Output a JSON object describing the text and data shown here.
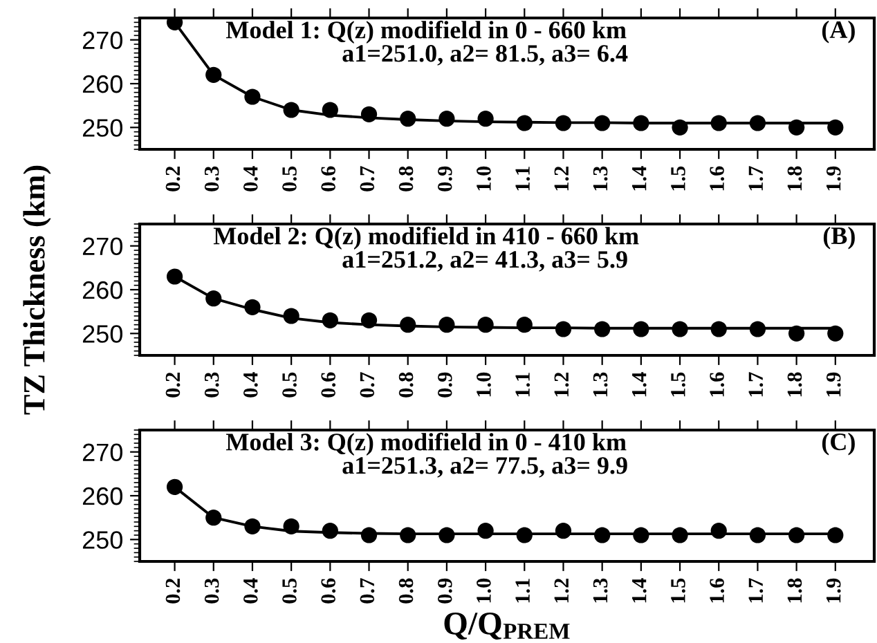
{
  "chart_data": [
    {
      "type": "scatter",
      "title": "Model 1: Q(z) modifield in 0 - 660 km",
      "subtitle": "a1=251.0, a2= 81.5, a3= 6.4",
      "annotations": [
        "(A)"
      ],
      "x": [
        0.2,
        0.3,
        0.4,
        0.5,
        0.6,
        0.7,
        0.8,
        0.9,
        1.0,
        1.1,
        1.2,
        1.3,
        1.4,
        1.5,
        1.6,
        1.7,
        1.8,
        1.9
      ],
      "xlim": [
        0.11,
        2.0
      ],
      "xticks": [
        {
          "value": 0.2,
          "label": "0.2"
        },
        {
          "value": 0.3,
          "label": "0.3"
        },
        {
          "value": 0.4,
          "label": "0.4"
        },
        {
          "value": 0.5,
          "label": "0.5"
        },
        {
          "value": 0.6,
          "label": "0.6"
        },
        {
          "value": 0.7,
          "label": "0.7"
        },
        {
          "value": 0.8,
          "label": "0.8"
        },
        {
          "value": 0.9,
          "label": "0.9"
        },
        {
          "value": 1.0,
          "label": "1.0"
        },
        {
          "value": 1.1,
          "label": "1.1"
        },
        {
          "value": 1.2,
          "label": "1.2"
        },
        {
          "value": 1.3,
          "label": "1.3"
        },
        {
          "value": 1.4,
          "label": "1.4"
        },
        {
          "value": 1.5,
          "label": "1.5"
        },
        {
          "value": 1.6,
          "label": "1.6"
        },
        {
          "value": 1.7,
          "label": "1.7"
        },
        {
          "value": 1.8,
          "label": "1.8"
        },
        {
          "value": 1.9,
          "label": "1.9"
        }
      ],
      "ylim": [
        245,
        275
      ],
      "yticks": [
        250,
        260,
        270
      ],
      "grid": false,
      "legend": false,
      "series": [
        {
          "type": "line",
          "color": "#000000",
          "marker": "none",
          "line_style": "solid",
          "values": [
            274,
            262,
            257,
            254,
            252.8,
            252.2,
            251.8,
            251.5,
            251.3,
            251.2,
            251.1,
            251.1,
            251.0,
            251.0,
            251.0,
            251.0,
            251.0,
            251.0
          ]
        },
        {
          "color": "#000000",
          "marker": "circle",
          "values": [
            274,
            262,
            257,
            254,
            254,
            253,
            252,
            252,
            252,
            251,
            251,
            251,
            251,
            250,
            251,
            251,
            250,
            250
          ]
        }
      ]
    },
    {
      "type": "scatter",
      "title": "Model 2: Q(z) modifield in 410 - 660 km",
      "subtitle": "a1=251.2, a2= 41.3, a3= 5.9",
      "ylabel": "TZ Thickness (km)",
      "annotations": [
        "(B)"
      ],
      "x": [
        0.2,
        0.3,
        0.4,
        0.5,
        0.6,
        0.7,
        0.8,
        0.9,
        1.0,
        1.1,
        1.2,
        1.3,
        1.4,
        1.5,
        1.6,
        1.7,
        1.8,
        1.9
      ],
      "xlim": [
        0.11,
        2.0
      ],
      "xticks": [
        {
          "value": 0.2,
          "label": "0.2"
        },
        {
          "value": 0.3,
          "label": "0.3"
        },
        {
          "value": 0.4,
          "label": "0.4"
        },
        {
          "value": 0.5,
          "label": "0.5"
        },
        {
          "value": 0.6,
          "label": "0.6"
        },
        {
          "value": 0.7,
          "label": "0.7"
        },
        {
          "value": 0.8,
          "label": "0.8"
        },
        {
          "value": 0.9,
          "label": "0.9"
        },
        {
          "value": 1.0,
          "label": "1.0"
        },
        {
          "value": 1.1,
          "label": "1.1"
        },
        {
          "value": 1.2,
          "label": "1.2"
        },
        {
          "value": 1.3,
          "label": "1.3"
        },
        {
          "value": 1.4,
          "label": "1.4"
        },
        {
          "value": 1.5,
          "label": "1.5"
        },
        {
          "value": 1.6,
          "label": "1.6"
        },
        {
          "value": 1.7,
          "label": "1.7"
        },
        {
          "value": 1.8,
          "label": "1.8"
        },
        {
          "value": 1.9,
          "label": "1.9"
        }
      ],
      "ylim": [
        245,
        275
      ],
      "yticks": [
        250,
        260,
        270
      ],
      "grid": false,
      "legend": false,
      "series": [
        {
          "type": "line",
          "color": "#000000",
          "marker": "none",
          "line_style": "solid",
          "values": [
            263,
            258,
            255.5,
            253.5,
            252.5,
            252,
            251.7,
            251.5,
            251.4,
            251.3,
            251.3,
            251.2,
            251.2,
            251.2,
            251.2,
            251.2,
            251.2,
            251.2
          ]
        },
        {
          "color": "#000000",
          "marker": "circle",
          "values": [
            263,
            258,
            256,
            254,
            253,
            253,
            252,
            252,
            252,
            252,
            251,
            251,
            251,
            251,
            251,
            251,
            250,
            250
          ]
        }
      ]
    },
    {
      "type": "scatter",
      "title": "Model 3: Q(z) modifield in 0 - 410 km",
      "subtitle": "a1=251.3, a2= 77.5, a3= 9.9",
      "xlabel": "Q/Q$_{PREM}$",
      "annotations": [
        "(C)"
      ],
      "x": [
        0.2,
        0.3,
        0.4,
        0.5,
        0.6,
        0.7,
        0.8,
        0.9,
        1.0,
        1.1,
        1.2,
        1.3,
        1.4,
        1.5,
        1.6,
        1.7,
        1.8,
        1.9
      ],
      "xlim": [
        0.11,
        2.0
      ],
      "xticks": [
        {
          "value": 0.2,
          "label": "0.2"
        },
        {
          "value": 0.3,
          "label": "0.3"
        },
        {
          "value": 0.4,
          "label": "0.4"
        },
        {
          "value": 0.5,
          "label": "0.5"
        },
        {
          "value": 0.6,
          "label": "0.6"
        },
        {
          "value": 0.7,
          "label": "0.7"
        },
        {
          "value": 0.8,
          "label": "0.8"
        },
        {
          "value": 0.9,
          "label": "0.9"
        },
        {
          "value": 1.0,
          "label": "1.0"
        },
        {
          "value": 1.1,
          "label": "1.1"
        },
        {
          "value": 1.2,
          "label": "1.2"
        },
        {
          "value": 1.3,
          "label": "1.3"
        },
        {
          "value": 1.4,
          "label": "1.4"
        },
        {
          "value": 1.5,
          "label": "1.5"
        },
        {
          "value": 1.6,
          "label": "1.6"
        },
        {
          "value": 1.7,
          "label": "1.7"
        },
        {
          "value": 1.8,
          "label": "1.8"
        },
        {
          "value": 1.9,
          "label": "1.9"
        }
      ],
      "ylim": [
        245,
        275
      ],
      "yticks": [
        250,
        260,
        270
      ],
      "grid": false,
      "legend": false,
      "series": [
        {
          "type": "line",
          "color": "#000000",
          "marker": "none",
          "line_style": "solid",
          "values": [
            262,
            255,
            253,
            251.9,
            251.6,
            251.4,
            251.3,
            251.3,
            251.3,
            251.3,
            251.3,
            251.3,
            251.3,
            251.3,
            251.3,
            251.3,
            251.3,
            251.3
          ]
        },
        {
          "color": "#000000",
          "marker": "circle",
          "values": [
            262,
            255,
            253,
            253,
            252,
            251,
            251,
            251,
            252,
            251,
            252,
            251,
            251,
            251,
            252,
            251,
            251,
            251
          ]
        }
      ]
    }
  ]
}
